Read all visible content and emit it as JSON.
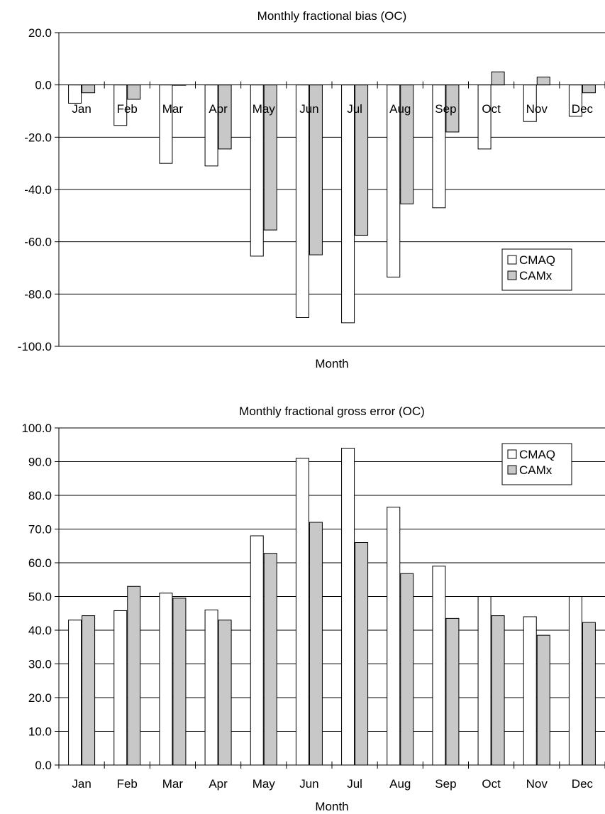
{
  "chart_data": [
    {
      "type": "bar",
      "title": "Monthly fractional bias (OC)",
      "xlabel": "Month",
      "ylabel": "",
      "categories": [
        "Jan",
        "Feb",
        "Mar",
        "Apr",
        "May",
        "Jun",
        "Jul",
        "Aug",
        "Sep",
        "Oct",
        "Nov",
        "Dec"
      ],
      "series": [
        {
          "name": "CMAQ",
          "color": "#ffffff",
          "values": [
            -7,
            -15.5,
            -30,
            -31,
            -65.5,
            -89,
            -91,
            -73.5,
            -47,
            -24.5,
            -14,
            -12
          ]
        },
        {
          "name": "CAMx",
          "color": "#c8c8c8",
          "values": [
            -3,
            -5.5,
            0,
            -24.5,
            -55.5,
            -65,
            -57.5,
            -45.5,
            -18,
            5,
            3,
            -3
          ]
        }
      ],
      "ylim": [
        -100,
        20
      ],
      "yticks": [
        20,
        0,
        -20,
        -40,
        -60,
        -80,
        -100
      ],
      "ytick_labels": [
        "20.0",
        "0.0",
        "-20.0",
        "-40.0",
        "-60.0",
        "-80.0",
        "-100.0"
      ],
      "grid": true,
      "legend_position": "lower-right",
      "category_labels_position": "at-zero-line"
    },
    {
      "type": "bar",
      "title": "Monthly fractional gross error (OC)",
      "xlabel": "Month",
      "ylabel": "",
      "categories": [
        "Jan",
        "Feb",
        "Mar",
        "Apr",
        "May",
        "Jun",
        "Jul",
        "Aug",
        "Sep",
        "Oct",
        "Nov",
        "Dec"
      ],
      "series": [
        {
          "name": "CMAQ",
          "color": "#ffffff",
          "values": [
            43,
            45.8,
            51,
            46,
            68,
            91,
            94,
            76.5,
            59,
            50,
            44,
            50
          ]
        },
        {
          "name": "CAMx",
          "color": "#c8c8c8",
          "values": [
            44.3,
            53,
            49.5,
            43,
            62.8,
            72,
            66,
            56.8,
            43.5,
            44.3,
            38.5,
            42.3
          ]
        }
      ],
      "ylim": [
        0,
        100
      ],
      "yticks": [
        100,
        90,
        80,
        70,
        60,
        50,
        40,
        30,
        20,
        10,
        0
      ],
      "ytick_labels": [
        "100.0",
        "90.0",
        "80.0",
        "70.0",
        "60.0",
        "50.0",
        "40.0",
        "30.0",
        "20.0",
        "10.0",
        "0.0"
      ],
      "grid": true,
      "legend_position": "top-right",
      "category_labels_position": "below-axis"
    }
  ]
}
